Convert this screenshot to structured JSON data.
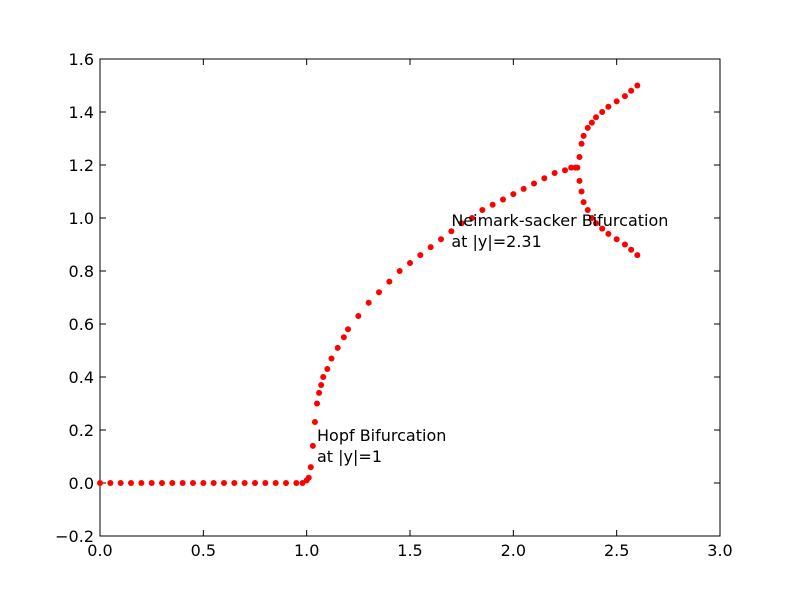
{
  "chart_data": {
    "type": "scatter",
    "title": "",
    "xlabel": "",
    "ylabel": "",
    "xlim": [
      0.0,
      3.0
    ],
    "ylim": [
      -0.2,
      1.6
    ],
    "x_ticks": [
      0.0,
      0.5,
      1.0,
      1.5,
      2.0,
      2.5,
      3.0
    ],
    "x_tick_labels": [
      "0.0",
      "0.5",
      "1.0",
      "1.5",
      "2.0",
      "2.5",
      "3.0"
    ],
    "y_ticks": [
      -0.2,
      0.0,
      0.2,
      0.4,
      0.6,
      0.8,
      1.0,
      1.2,
      1.4,
      1.6
    ],
    "y_tick_labels": [
      "−0.2",
      "0.0",
      "0.2",
      "0.4",
      "0.6",
      "0.8",
      "1.0",
      "1.2",
      "1.4",
      "1.6"
    ],
    "grid": false,
    "marker_color": "#ff0000",
    "series": [
      {
        "points": [
          [
            0.0,
            0.0
          ],
          [
            0.05,
            0.0
          ],
          [
            0.1,
            0.0
          ],
          [
            0.15,
            0.0
          ],
          [
            0.2,
            0.0
          ],
          [
            0.25,
            0.0
          ],
          [
            0.3,
            0.0
          ],
          [
            0.35,
            0.0
          ],
          [
            0.4,
            0.0
          ],
          [
            0.45,
            0.0
          ],
          [
            0.5,
            0.0
          ],
          [
            0.55,
            0.0
          ],
          [
            0.6,
            0.0
          ],
          [
            0.65,
            0.0
          ],
          [
            0.7,
            0.0
          ],
          [
            0.75,
            0.0
          ],
          [
            0.8,
            0.0
          ],
          [
            0.85,
            0.0
          ],
          [
            0.9,
            0.0
          ],
          [
            0.95,
            0.0
          ],
          [
            0.98,
            0.0
          ],
          [
            1.0,
            0.01
          ],
          [
            1.01,
            0.02
          ],
          [
            1.02,
            0.06
          ],
          [
            1.03,
            0.14
          ],
          [
            1.04,
            0.23
          ],
          [
            1.05,
            0.3
          ],
          [
            1.06,
            0.34
          ],
          [
            1.07,
            0.37
          ],
          [
            1.08,
            0.4
          ],
          [
            1.1,
            0.43
          ],
          [
            1.12,
            0.47
          ],
          [
            1.15,
            0.51
          ],
          [
            1.18,
            0.55
          ],
          [
            1.2,
            0.58
          ],
          [
            1.25,
            0.63
          ],
          [
            1.3,
            0.68
          ],
          [
            1.35,
            0.72
          ],
          [
            1.4,
            0.76
          ],
          [
            1.45,
            0.8
          ],
          [
            1.5,
            0.83
          ],
          [
            1.55,
            0.86
          ],
          [
            1.6,
            0.89
          ],
          [
            1.65,
            0.92
          ],
          [
            1.7,
            0.95
          ],
          [
            1.75,
            0.98
          ],
          [
            1.8,
            1.0
          ],
          [
            1.85,
            1.03
          ],
          [
            1.9,
            1.05
          ],
          [
            1.95,
            1.07
          ],
          [
            2.0,
            1.09
          ],
          [
            2.05,
            1.11
          ],
          [
            2.1,
            1.13
          ],
          [
            2.15,
            1.15
          ],
          [
            2.2,
            1.17
          ],
          [
            2.25,
            1.18
          ],
          [
            2.28,
            1.19
          ],
          [
            2.3,
            1.19
          ],
          [
            2.31,
            1.19
          ],
          [
            2.32,
            1.23
          ],
          [
            2.33,
            1.28
          ],
          [
            2.34,
            1.31
          ],
          [
            2.36,
            1.34
          ],
          [
            2.38,
            1.36
          ],
          [
            2.4,
            1.38
          ],
          [
            2.43,
            1.4
          ],
          [
            2.46,
            1.42
          ],
          [
            2.5,
            1.44
          ],
          [
            2.54,
            1.46
          ],
          [
            2.57,
            1.48
          ],
          [
            2.6,
            1.5
          ],
          [
            2.32,
            1.14
          ],
          [
            2.33,
            1.1
          ],
          [
            2.34,
            1.06
          ],
          [
            2.36,
            1.03
          ],
          [
            2.38,
            1.0
          ],
          [
            2.4,
            0.98
          ],
          [
            2.43,
            0.96
          ],
          [
            2.46,
            0.94
          ],
          [
            2.5,
            0.92
          ],
          [
            2.54,
            0.9
          ],
          [
            2.57,
            0.88
          ],
          [
            2.6,
            0.86
          ]
        ]
      }
    ],
    "annotations": [
      {
        "x": 1.05,
        "y": 0.08,
        "lines": [
          "Hopf Bifurcation",
          "at |y|=1"
        ]
      },
      {
        "x": 1.7,
        "y": 0.89,
        "lines": [
          "Neimark-sacker Bifurcation",
          "at |y|=2.31"
        ]
      }
    ]
  }
}
